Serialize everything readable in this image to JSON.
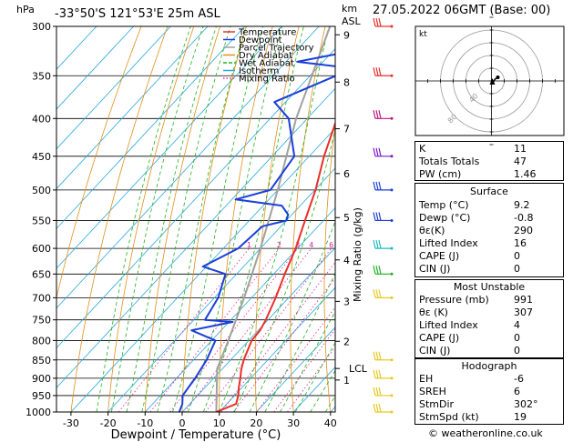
{
  "header": {
    "location": "-33°50'S  121°53'E  25m  ASL",
    "datetime": "27.05.2022  06GMT  (Base: 00)",
    "hpa_label": "hPa",
    "km_label": "km",
    "asl_label": "ASL",
    "mixing_label": "Mixing Ratio (g/kg)",
    "lcl_label": "LCL"
  },
  "chart_data": {
    "type": "skew-t",
    "xlabel": "Dewpoint / Temperature (°C)",
    "ylabel": "hPa",
    "xlim": [
      -35,
      40
    ],
    "ylim": [
      1000,
      300
    ],
    "pressure_ticks": [
      300,
      350,
      400,
      450,
      500,
      550,
      600,
      650,
      700,
      750,
      800,
      850,
      900,
      950,
      1000
    ],
    "temp_ticks": [
      -30,
      -20,
      -10,
      0,
      10,
      20,
      30,
      40
    ],
    "km_ticks": [
      {
        "km": "1",
        "p": 905
      },
      {
        "km": "2",
        "p": 802
      },
      {
        "km": "3",
        "p": 708
      },
      {
        "km": "4",
        "p": 622
      },
      {
        "km": "5",
        "p": 545
      },
      {
        "km": "6",
        "p": 475
      },
      {
        "km": "7",
        "p": 413
      },
      {
        "km": "8",
        "p": 357
      },
      {
        "km": "9",
        "p": 308
      }
    ],
    "mixing_ratios": [
      "1",
      "2",
      "3",
      "4",
      "6",
      "8",
      "10",
      "15",
      "20",
      "25"
    ],
    "mixing_ratio_values": [
      1,
      2,
      3,
      4,
      6,
      8,
      10,
      15,
      20,
      25
    ],
    "lcl_p": 873,
    "legend": [
      {
        "name": "Temperature",
        "color": "#e8302a"
      },
      {
        "name": "Dewpoint",
        "color": "#1a3fd9"
      },
      {
        "name": "Parcel Trajectory",
        "color": "#a0a0a0"
      },
      {
        "name": "Dry Adiabat",
        "color": "#e0901a"
      },
      {
        "name": "Wet Adiabat",
        "color": "#20b020"
      },
      {
        "name": "Isotherm",
        "color": "#25a8e0"
      },
      {
        "name": "Mixing Ratio",
        "color": "#e0209a"
      }
    ],
    "temperature": [
      [
        1000,
        9.2
      ],
      [
        975,
        12.5
      ],
      [
        950,
        11
      ],
      [
        925,
        9
      ],
      [
        900,
        7.2
      ],
      [
        875,
        5.2
      ],
      [
        850,
        3.5
      ],
      [
        800,
        0.8
      ],
      [
        775,
        0.5
      ],
      [
        750,
        -0.6
      ],
      [
        700,
        -3.5
      ],
      [
        650,
        -7
      ],
      [
        600,
        -10.5
      ],
      [
        550,
        -15
      ],
      [
        500,
        -19.8
      ],
      [
        450,
        -26
      ],
      [
        400,
        -32
      ],
      [
        350,
        -38
      ],
      [
        300,
        -44
      ]
    ],
    "dewpoint": [
      [
        1000,
        -0.8
      ],
      [
        975,
        -2
      ],
      [
        950,
        -4
      ],
      [
        925,
        -4.5
      ],
      [
        900,
        -5
      ],
      [
        850,
        -6.5
      ],
      [
        800,
        -9
      ],
      [
        775,
        -18
      ],
      [
        755,
        -9
      ],
      [
        750,
        -17
      ],
      [
        700,
        -19
      ],
      [
        650,
        -23
      ],
      [
        635,
        -31
      ],
      [
        600,
        -26
      ],
      [
        560,
        -25
      ],
      [
        550,
        -20
      ],
      [
        540,
        -21
      ],
      [
        525,
        -25
      ],
      [
        515,
        -39
      ],
      [
        500,
        -32
      ],
      [
        450,
        -34
      ],
      [
        400,
        -45
      ],
      [
        380,
        -53
      ],
      [
        350,
        -43
      ],
      [
        340,
        -45
      ],
      [
        335,
        -57
      ],
      [
        325,
        -46
      ],
      [
        300,
        -52
      ]
    ],
    "parcel": [
      [
        1000,
        9.2
      ],
      [
        873,
        -1.5
      ],
      [
        800,
        -5.5
      ],
      [
        700,
        -12
      ],
      [
        600,
        -20
      ],
      [
        500,
        -30
      ],
      [
        400,
        -43
      ],
      [
        300,
        -57
      ]
    ],
    "winds": [
      {
        "p": 300,
        "color": "#e8302a"
      },
      {
        "p": 350,
        "color": "#e8302a"
      },
      {
        "p": 400,
        "color": "#c0147e"
      },
      {
        "p": 450,
        "color": "#7a18c8"
      },
      {
        "p": 500,
        "color": "#1a3fd9"
      },
      {
        "p": 550,
        "color": "#1a3fd9"
      },
      {
        "p": 600,
        "color": "#20b8b8"
      },
      {
        "p": 650,
        "color": "#20b020"
      },
      {
        "p": 700,
        "color": "#e8c820"
      },
      {
        "p": 850,
        "color": "#e8c820"
      },
      {
        "p": 900,
        "color": "#e8c820"
      },
      {
        "p": 950,
        "color": "#e8c820"
      },
      {
        "p": 1000,
        "color": "#e8c820"
      }
    ]
  },
  "hodograph": {
    "unit": "kt",
    "rings": [
      "80",
      "40"
    ],
    "ring_values": [
      20,
      40,
      60,
      80
    ]
  },
  "indices": [
    {
      "k": "K",
      "v": "11"
    },
    {
      "k": "Totals Totals",
      "v": "47"
    },
    {
      "k": "PW (cm)",
      "v": "1.46"
    }
  ],
  "surface": {
    "title": "Surface",
    "rows": [
      {
        "k": "Temp (°C)",
        "v": "9.2"
      },
      {
        "k": "Dewp (°C)",
        "v": "-0.8"
      },
      {
        "k": "θε(K)",
        "v": "290"
      },
      {
        "k": "Lifted Index",
        "v": "16"
      },
      {
        "k": "CAPE (J)",
        "v": "0"
      },
      {
        "k": "CIN (J)",
        "v": "0"
      }
    ]
  },
  "unstable": {
    "title": "Most Unstable",
    "rows": [
      {
        "k": "Pressure (mb)",
        "v": "991"
      },
      {
        "k": "θε (K)",
        "v": "307"
      },
      {
        "k": "Lifted Index",
        "v": "4"
      },
      {
        "k": "CAPE (J)",
        "v": "0"
      },
      {
        "k": "CIN (J)",
        "v": "0"
      }
    ]
  },
  "hodo_table": {
    "title": "Hodograph",
    "rows": [
      {
        "k": "EH",
        "v": "-6"
      },
      {
        "k": "SREH",
        "v": "6"
      },
      {
        "k": "StmDir",
        "v": "302°"
      },
      {
        "k": "StmSpd (kt)",
        "v": "19"
      }
    ]
  },
  "footer": "© weatheronline.co.uk"
}
